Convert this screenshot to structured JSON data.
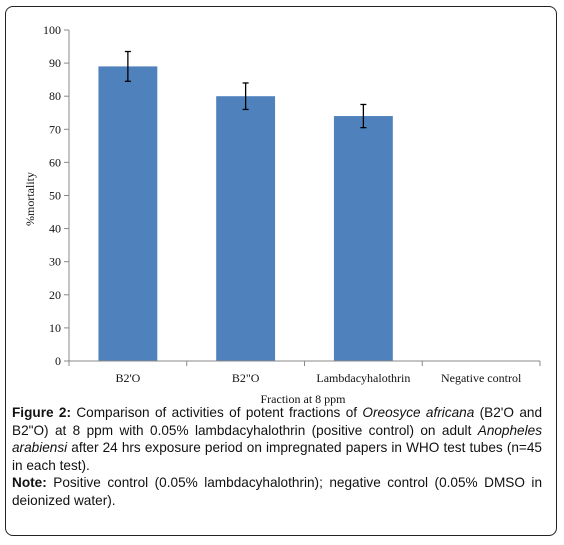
{
  "chart_data": {
    "type": "bar",
    "categories": [
      "B2'O",
      "B2\"O",
      "Lambdacyhalothrin",
      "Negative control"
    ],
    "values": [
      89,
      80,
      74,
      0
    ],
    "errors": [
      4.5,
      4,
      3.5,
      0
    ],
    "xlabel": "Fraction at 8 ppm",
    "ylabel": "%mortality",
    "ylim": [
      0,
      100
    ],
    "yticks": [
      "0",
      "10",
      "20",
      "30",
      "40",
      "50",
      "60",
      "70",
      "80",
      "90",
      "100"
    ],
    "grid": false,
    "bar_color": "#4f81bd"
  },
  "caption": {
    "fig_label": "Figure 2:",
    "t1": " Comparison of activities of potent fractions of ",
    "species1": "Oreosyce africana",
    "t2": " (B2'O and B2\"O) at 8 ppm with 0.05% lambdacyhalothrin (positive control) on adult ",
    "species2": "Anopheles arabiensi",
    "t3": " after 24 hrs exposure period on impregnated papers in WHO test tubes (n=45 in each test).",
    "note_label": "Note:",
    "note_text": " Positive control (0.05% lambdacyhalothrin); negative control (0.05% DMSO in deionized water)."
  }
}
